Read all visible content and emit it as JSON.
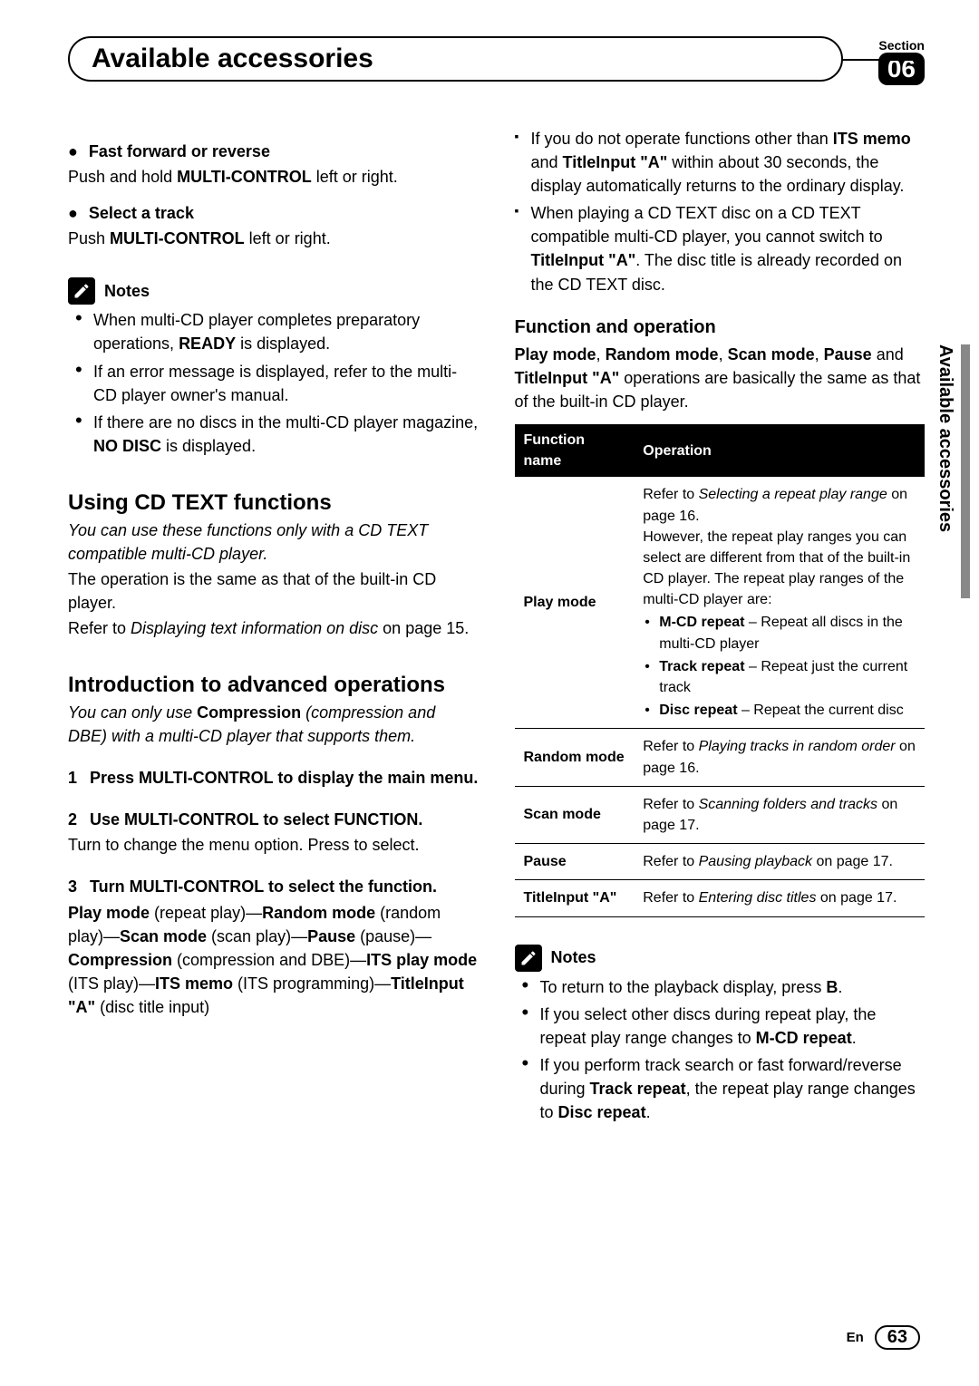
{
  "header": {
    "title": "Available accessories",
    "section_label": "Section",
    "section_number": "06"
  },
  "side_tab": "Available accessories",
  "left": {
    "ffr_title": "Fast forward or reverse",
    "ffr_text_pre": "Push and hold ",
    "ffr_text_bold": "MULTI-CONTROL",
    "ffr_text_post": " left or right.",
    "sel_title": "Select a track",
    "sel_text_pre": "Push ",
    "sel_text_bold": "MULTI-CONTROL",
    "sel_text_post": " left or right.",
    "notes_label": "Notes",
    "notes": [
      {
        "pre": "When multi-CD player completes preparatory operations, ",
        "bold": "READY",
        "post": " is displayed."
      },
      {
        "pre": "If an error message is displayed, refer to the multi-CD player owner's manual.",
        "bold": "",
        "post": ""
      },
      {
        "pre": "If there are no discs in the multi-CD player magazine, ",
        "bold": "NO DISC",
        "post": " is displayed."
      }
    ],
    "cdtext_title": "Using CD TEXT functions",
    "cdtext_intro_italic": "You can use these functions only with a CD TEXT compatible multi-CD player.",
    "cdtext_para1": "The operation is the same as that of the built-in CD player.",
    "cdtext_para2_pre": "Refer to ",
    "cdtext_para2_italic": "Displaying text information on disc",
    "cdtext_para2_post": " on page 15.",
    "intro_title": "Introduction to advanced operations",
    "intro_italic_pre": "You can only use ",
    "intro_italic_bold": "Compression",
    "intro_italic_post": " (compression and DBE) with a multi-CD player that supports them.",
    "step1": "Press MULTI-CONTROL to display the main menu.",
    "step2": "Use MULTI-CONTROL to select FUNCTION.",
    "step2_sub": "Turn to change the menu option. Press to select.",
    "step3": "Turn MULTI-CONTROL to select the function.",
    "step3_chain": [
      {
        "b": "Play mode",
        "t": " (repeat play)—"
      },
      {
        "b": "Random mode",
        "t": " (random play)—"
      },
      {
        "b": "Scan mode",
        "t": " (scan play)—"
      },
      {
        "b": "Pause",
        "t": " (pause)—"
      },
      {
        "b": "Compression",
        "t": " (compression and DBE)—"
      },
      {
        "b": "ITS play mode",
        "t": " (ITS play)—"
      },
      {
        "b": "ITS memo",
        "t": " (ITS programming)—"
      },
      {
        "b": "TitleInput \"A\"",
        "t": " (disc title input)"
      }
    ]
  },
  "right": {
    "sq_notes": [
      {
        "parts": [
          {
            "t": "If you do not operate functions other than "
          },
          {
            "b": "ITS memo"
          },
          {
            "t": " and "
          },
          {
            "b": "TitleInput \"A\""
          },
          {
            "t": " within about 30 seconds, the display automatically returns to the ordinary display."
          }
        ]
      },
      {
        "parts": [
          {
            "t": "When playing a CD TEXT disc on a CD TEXT compatible multi-CD player, you cannot switch to "
          },
          {
            "b": "TitleInput \"A\""
          },
          {
            "t": ". The disc title is already recorded on the CD TEXT disc."
          }
        ]
      }
    ],
    "func_title": "Function and operation",
    "func_intro_parts": [
      {
        "b": "Play mode"
      },
      {
        "t": ", "
      },
      {
        "b": "Random mode"
      },
      {
        "t": ", "
      },
      {
        "b": "Scan mode"
      },
      {
        "t": ", "
      },
      {
        "b": "Pause"
      },
      {
        "t": " and "
      },
      {
        "b": "TitleInput \"A\""
      },
      {
        "t": " operations are basically the same as that of the built-in CD player."
      }
    ],
    "table": {
      "h1": "Function name",
      "h2": "Operation",
      "rows": [
        {
          "name": "Play mode",
          "pre": "Refer to ",
          "italic": "Selecting a repeat play range",
          "post": " on page 16.",
          "extra": "However, the repeat play ranges you can select are different from that of the built-in CD player. The repeat play ranges of the multi-CD player are:",
          "bullets": [
            {
              "b": "M-CD repeat",
              "t": " – Repeat all discs in the multi-CD player"
            },
            {
              "b": "Track repeat",
              "t": " – Repeat just the current track"
            },
            {
              "b": "Disc repeat",
              "t": " – Repeat the current disc"
            }
          ]
        },
        {
          "name": "Random mode",
          "pre": "Refer to ",
          "italic": "Playing tracks in random order",
          "post": " on page 16."
        },
        {
          "name": "Scan mode",
          "pre": "Refer to ",
          "italic": "Scanning folders and tracks",
          "post": " on page 17."
        },
        {
          "name": "Pause",
          "pre": "Refer to ",
          "italic": "Pausing playback",
          "post": " on page 17."
        },
        {
          "name": "TitleInput \"A\"",
          "pre": "Refer to ",
          "italic": "Entering disc titles",
          "post": " on page 17."
        }
      ]
    },
    "notes_label": "Notes",
    "notes2": [
      {
        "parts": [
          {
            "t": "To return to the playback display, press "
          },
          {
            "b": "B"
          },
          {
            "t": "."
          }
        ]
      },
      {
        "parts": [
          {
            "t": "If you select other discs during repeat play, the repeat play range changes to "
          },
          {
            "b": "M-CD repeat"
          },
          {
            "t": "."
          }
        ]
      },
      {
        "parts": [
          {
            "t": "If you perform track search or fast forward/reverse during "
          },
          {
            "b": "Track repeat"
          },
          {
            "t": ", the repeat play range changes to "
          },
          {
            "b": "Disc repeat"
          },
          {
            "t": "."
          }
        ]
      }
    ]
  },
  "footer": {
    "lang": "En",
    "page": "63"
  }
}
